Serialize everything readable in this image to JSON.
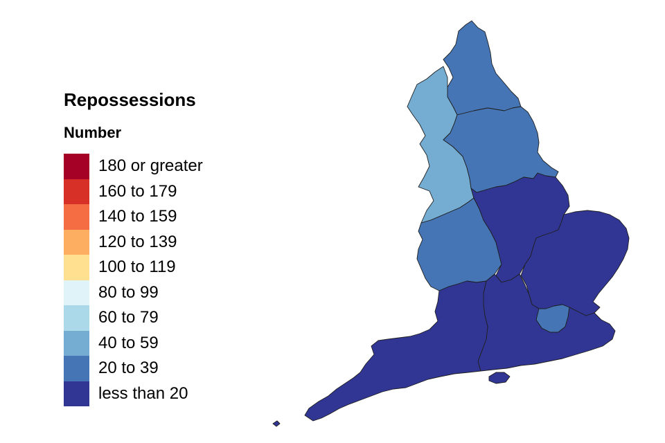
{
  "legend": {
    "title": "Repossessions",
    "subtitle": "Number",
    "classes": [
      {
        "label": "180 or greater",
        "color": "#a50026"
      },
      {
        "label": "160 to 179",
        "color": "#d73027"
      },
      {
        "label": "140 to 159",
        "color": "#f46d43"
      },
      {
        "label": "120 to 139",
        "color": "#fdae61"
      },
      {
        "label": "100 to 119",
        "color": "#fee090"
      },
      {
        "label": "80 to 99",
        "color": "#e0f3f8"
      },
      {
        "label": "60 to 79",
        "color": "#abd9e9"
      },
      {
        "label": "40 to 59",
        "color": "#74add1"
      },
      {
        "label": "20 to 39",
        "color": "#4575b4"
      },
      {
        "label": "less than 20",
        "color": "#313695"
      }
    ]
  },
  "regions": [
    {
      "id": "north-east",
      "class_index": 8
    },
    {
      "id": "north-west",
      "class_index": 7
    },
    {
      "id": "yorkshire",
      "class_index": 8
    },
    {
      "id": "west-midlands",
      "class_index": 8
    },
    {
      "id": "east-midlands",
      "class_index": 9
    },
    {
      "id": "east",
      "class_index": 9
    },
    {
      "id": "london",
      "class_index": 8
    },
    {
      "id": "south-west",
      "class_index": 9
    },
    {
      "id": "south-east",
      "class_index": 9
    }
  ]
}
